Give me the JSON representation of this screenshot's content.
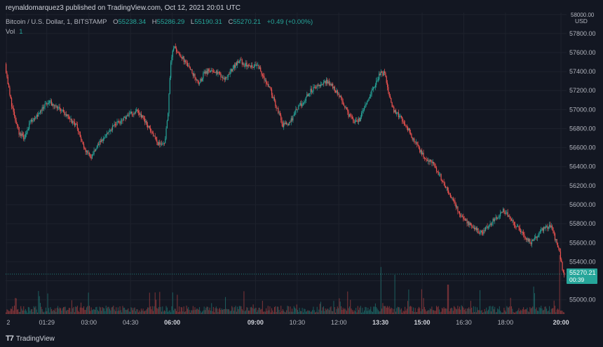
{
  "header": {
    "publisher": "reynaldomarquez3 published on TradingView.com, Oct 12, 2021 20:01 UTC",
    "symbol": "Bitcoin / U.S. Dollar, 1, BITSTAMP",
    "o_label": "O",
    "o_value": "55238.34",
    "h_label": "H",
    "h_value": "55286.29",
    "l_label": "L",
    "l_value": "55190.31",
    "c_label": "C",
    "c_value": "55270.21",
    "change": "+0.49 (+0.00%)",
    "vol_label": "Vol",
    "vol_value": "1"
  },
  "branding": {
    "name": "TradingView"
  },
  "colors": {
    "bg": "#131722",
    "up": "#26a69a",
    "down": "#ef5350",
    "grid": "#1e222d",
    "axis_text": "#b2b5be"
  },
  "chart_data": {
    "type": "candlestick",
    "series_name": "Bitcoin / U.S. Dollar, 1, BITSTAMP",
    "currency": "USD",
    "last_price": "55270.21",
    "countdown": "00:39",
    "ylim": [
      54850,
      58020
    ],
    "y_ticks": [
      "58000.00",
      "57800.00",
      "57600.00",
      "57400.00",
      "57200.00",
      "57000.00",
      "56800.00",
      "56600.00",
      "56400.00",
      "56200.00",
      "56000.00",
      "55800.00",
      "55600.00",
      "55400.00",
      "55200.00",
      "55000.00"
    ],
    "y_tick_values": [
      58000,
      57800,
      57600,
      57400,
      57200,
      57000,
      56800,
      56600,
      56400,
      56200,
      56000,
      55800,
      55600,
      55400,
      55200,
      55000
    ],
    "x_ticks": [
      "2",
      "01:29",
      "03:00",
      "04:30",
      "06:00",
      "09:00",
      "10:30",
      "12:00",
      "13:30",
      "15:00",
      "16:30",
      "18:00",
      "20:00"
    ],
    "x_tick_bold": [
      "06:00",
      "09:00",
      "13:30",
      "15:00",
      "20:00"
    ],
    "x_tick_minutes": [
      2,
      89,
      180,
      270,
      360,
      540,
      630,
      720,
      810,
      900,
      990,
      1080,
      1200
    ],
    "xlim": [
      0,
      1212
    ],
    "price_path": [
      [
        0,
        57480
      ],
      [
        10,
        57150
      ],
      [
        20,
        56920
      ],
      [
        30,
        56760
      ],
      [
        40,
        56700
      ],
      [
        55,
        56880
      ],
      [
        70,
        56950
      ],
      [
        80,
        57020
      ],
      [
        95,
        57080
      ],
      [
        110,
        57040
      ],
      [
        125,
        56980
      ],
      [
        140,
        56900
      ],
      [
        155,
        56820
      ],
      [
        170,
        56600
      ],
      [
        185,
        56500
      ],
      [
        200,
        56620
      ],
      [
        220,
        56760
      ],
      [
        240,
        56850
      ],
      [
        255,
        56900
      ],
      [
        270,
        56950
      ],
      [
        285,
        57000
      ],
      [
        300,
        56900
      ],
      [
        315,
        56780
      ],
      [
        330,
        56640
      ],
      [
        345,
        56650
      ],
      [
        352,
        56980
      ],
      [
        358,
        57500
      ],
      [
        363,
        57670
      ],
      [
        375,
        57600
      ],
      [
        390,
        57500
      ],
      [
        410,
        57340
      ],
      [
        420,
        57280
      ],
      [
        430,
        57380
      ],
      [
        445,
        57420
      ],
      [
        460,
        57380
      ],
      [
        475,
        57330
      ],
      [
        490,
        57420
      ],
      [
        505,
        57520
      ],
      [
        515,
        57480
      ],
      [
        530,
        57450
      ],
      [
        545,
        57480
      ],
      [
        555,
        57380
      ],
      [
        570,
        57240
      ],
      [
        585,
        57050
      ],
      [
        600,
        56840
      ],
      [
        615,
        56860
      ],
      [
        630,
        57000
      ],
      [
        645,
        57080
      ],
      [
        660,
        57200
      ],
      [
        675,
        57240
      ],
      [
        690,
        57300
      ],
      [
        705,
        57260
      ],
      [
        720,
        57160
      ],
      [
        740,
        56960
      ],
      [
        755,
        56860
      ],
      [
        765,
        56890
      ],
      [
        780,
        57060
      ],
      [
        795,
        57220
      ],
      [
        810,
        57380
      ],
      [
        820,
        57380
      ],
      [
        830,
        57150
      ],
      [
        840,
        56980
      ],
      [
        855,
        56920
      ],
      [
        870,
        56800
      ],
      [
        880,
        56700
      ],
      [
        895,
        56580
      ],
      [
        910,
        56460
      ],
      [
        925,
        56440
      ],
      [
        940,
        56300
      ],
      [
        955,
        56160
      ],
      [
        970,
        56020
      ],
      [
        985,
        55880
      ],
      [
        1000,
        55820
      ],
      [
        1015,
        55740
      ],
      [
        1030,
        55700
      ],
      [
        1045,
        55780
      ],
      [
        1060,
        55860
      ],
      [
        1075,
        55940
      ],
      [
        1085,
        55900
      ],
      [
        1095,
        55820
      ],
      [
        1110,
        55740
      ],
      [
        1125,
        55660
      ],
      [
        1135,
        55600
      ],
      [
        1150,
        55680
      ],
      [
        1165,
        55760
      ],
      [
        1180,
        55780
      ],
      [
        1190,
        55620
      ],
      [
        1200,
        55450
      ],
      [
        1206,
        55270
      ]
    ],
    "volume_spikes": [
      [
        810,
        0.48
      ],
      [
        840,
        0.4
      ],
      [
        1196,
        0.6
      ],
      [
        360,
        0.22
      ],
      [
        955,
        0.3
      ],
      [
        1140,
        0.28
      ],
      [
        870,
        0.25
      ]
    ]
  }
}
